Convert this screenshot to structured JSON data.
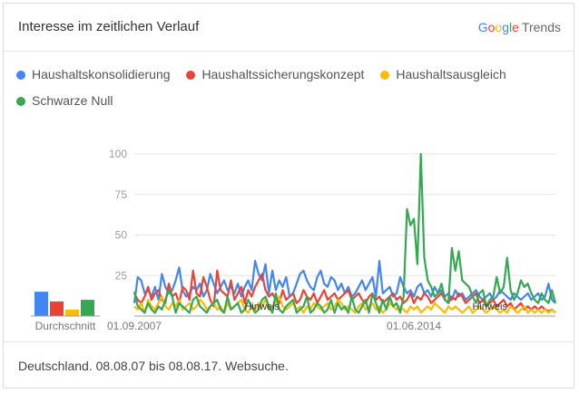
{
  "header": {
    "title": "Interesse im zeitlichen Verlauf",
    "logo_google": "Google",
    "logo_trends": "Trends"
  },
  "footer": {
    "text": "Deutschland. 08.08.07 bis 08.08.17. Websuche."
  },
  "colors": {
    "blue": "#4285f4",
    "red": "#ea4335",
    "yellow": "#fbbc05",
    "green": "#34a853",
    "grid": "#e5e5e5",
    "axis": "#9e9e9e"
  },
  "chart_data": {
    "type": "line",
    "xlabel": "",
    "ylabel": "",
    "ylim": [
      0,
      100
    ],
    "yticks": [
      25,
      50,
      75,
      100
    ],
    "grid": true,
    "legend": "top",
    "xticks": [
      {
        "label": "01.09.2007",
        "index": 0
      },
      {
        "label": "01.06.2014",
        "index": 81
      }
    ],
    "annotations": [
      {
        "label": "Hinweis",
        "index": 37
      },
      {
        "label": "Hinweis",
        "index": 103
      }
    ],
    "average": {
      "label": "Durchschnitt",
      "values": [
        15,
        9,
        4,
        10
      ]
    },
    "series": [
      {
        "name": "Haushaltskonsolidierung",
        "color": "#4285f4",
        "values": [
          8,
          24,
          22,
          14,
          16,
          12,
          18,
          10,
          26,
          18,
          14,
          16,
          22,
          30,
          16,
          12,
          14,
          18,
          16,
          20,
          12,
          16,
          26,
          20,
          14,
          18,
          22,
          16,
          18,
          14,
          20,
          12,
          18,
          22,
          16,
          34,
          26,
          22,
          32,
          14,
          28,
          16,
          22,
          18,
          24,
          12,
          14,
          20,
          26,
          28,
          22,
          18,
          16,
          24,
          28,
          20,
          18,
          24,
          22,
          16,
          20,
          14,
          18,
          12,
          14,
          18,
          22,
          16,
          20,
          24,
          12,
          34,
          14,
          16,
          18,
          12,
          14,
          24,
          18,
          14,
          16,
          12,
          18,
          20,
          14,
          16,
          12,
          18,
          14,
          16,
          12,
          14,
          10,
          16,
          12,
          14,
          10,
          12,
          14,
          16,
          12,
          10,
          12,
          14,
          10,
          12,
          16,
          14,
          12,
          10,
          14,
          12,
          10,
          12,
          14,
          10,
          12,
          14,
          10,
          12,
          20,
          10,
          8
        ]
      },
      {
        "name": "Haushaltssicherungskonzept",
        "color": "#ea4335",
        "values": [
          14,
          10,
          8,
          12,
          18,
          10,
          14,
          16,
          10,
          8,
          20,
          12,
          14,
          8,
          18,
          16,
          10,
          28,
          14,
          12,
          24,
          18,
          10,
          6,
          28,
          16,
          14,
          12,
          22,
          10,
          14,
          18,
          8,
          16,
          12,
          18,
          22,
          26,
          16,
          12,
          14,
          10,
          8,
          16,
          10,
          12,
          14,
          8,
          10,
          16,
          12,
          10,
          14,
          8,
          12,
          16,
          10,
          12,
          14,
          10,
          12,
          14,
          16,
          10,
          12,
          14,
          10,
          8,
          12,
          14,
          10,
          12,
          8,
          10,
          12,
          14,
          10,
          12,
          8,
          10,
          14,
          8,
          12,
          10,
          14,
          12,
          8,
          10,
          12,
          14,
          10,
          8,
          12,
          10,
          14,
          12,
          8,
          10,
          12,
          14,
          8,
          10,
          6,
          8,
          10,
          6,
          8,
          10,
          6,
          8,
          4,
          6,
          8,
          4,
          6,
          4,
          6,
          4,
          6,
          4,
          3,
          4,
          2
        ]
      },
      {
        "name": "Haushaltsausgleich",
        "color": "#fbbc05",
        "values": [
          6,
          4,
          8,
          2,
          10,
          6,
          4,
          8,
          12,
          6,
          4,
          8,
          6,
          10,
          4,
          6,
          8,
          4,
          6,
          10,
          8,
          4,
          6,
          8,
          4,
          6,
          2,
          8,
          4,
          6,
          8,
          10,
          4,
          2,
          6,
          4,
          8,
          6,
          10,
          4,
          6,
          8,
          12,
          6,
          4,
          6,
          8,
          4,
          6,
          2,
          6,
          4,
          8,
          6,
          4,
          6,
          8,
          4,
          6,
          10,
          8,
          4,
          6,
          4,
          2,
          6,
          8,
          4,
          6,
          8,
          4,
          6,
          2,
          4,
          8,
          6,
          4,
          6,
          4,
          2,
          6,
          4,
          6,
          2,
          4,
          6,
          4,
          8,
          6,
          4,
          2,
          6,
          4,
          6,
          4,
          2,
          4,
          6,
          2,
          4,
          6,
          4,
          2,
          4,
          6,
          4,
          2,
          4,
          2,
          6,
          4,
          2,
          4,
          6,
          2,
          4,
          2,
          4,
          2,
          4,
          2,
          4,
          2
        ]
      },
      {
        "name": "Schwarze Null",
        "color": "#34a853",
        "values": [
          15,
          6,
          4,
          2,
          8,
          4,
          2,
          6,
          4,
          10,
          16,
          12,
          2,
          8,
          6,
          4,
          2,
          10,
          12,
          6,
          4,
          2,
          6,
          8,
          10,
          4,
          2,
          12,
          4,
          6,
          8,
          2,
          4,
          10,
          6,
          2,
          4,
          10,
          12,
          6,
          2,
          14,
          4,
          2,
          6,
          8,
          10,
          2,
          4,
          6,
          12,
          2,
          4,
          8,
          6,
          2,
          4,
          10,
          2,
          8,
          4,
          6,
          2,
          12,
          4,
          2,
          6,
          10,
          2,
          14,
          8,
          2,
          10,
          4,
          12,
          6,
          8,
          2,
          12,
          66,
          56,
          60,
          32,
          100,
          36,
          22,
          18,
          12,
          14,
          20,
          10,
          8,
          42,
          28,
          40,
          22,
          20,
          18,
          12,
          8,
          14,
          16,
          6,
          10,
          12,
          24,
          14,
          18,
          36,
          16,
          10,
          14,
          22,
          18,
          20,
          14,
          10,
          8,
          14,
          10,
          8,
          16,
          8
        ]
      }
    ]
  }
}
